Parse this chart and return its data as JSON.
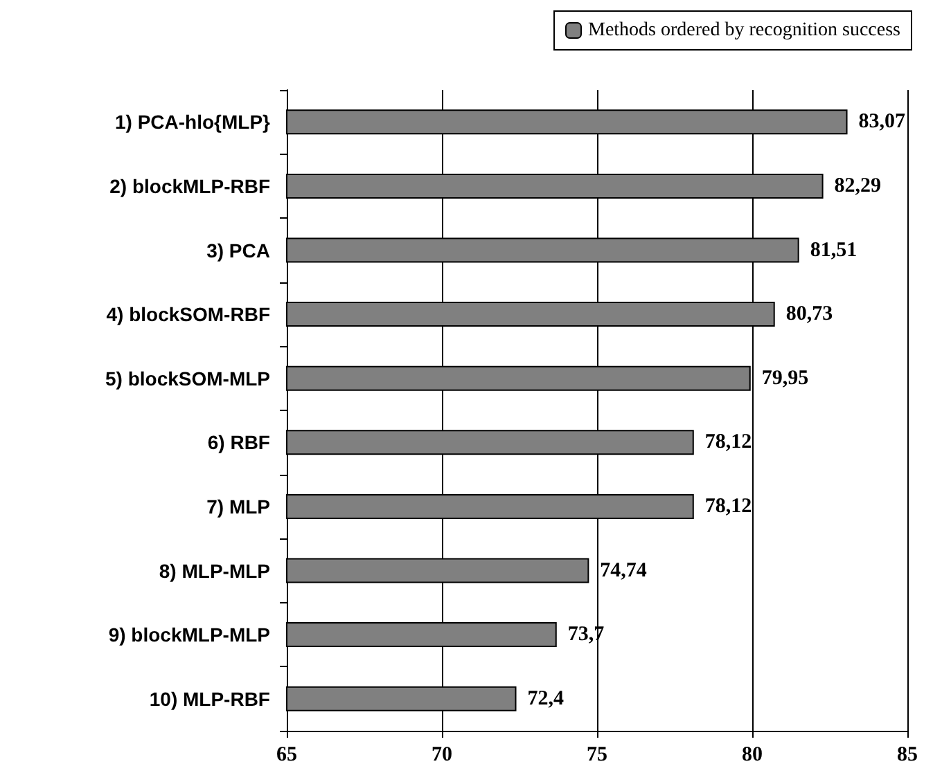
{
  "chart_data": {
    "type": "bar",
    "orientation": "horizontal",
    "categories": [
      "1) PCA-hlo{MLP}",
      "2) blockMLP-RBF",
      "3) PCA",
      "4) blockSOM-RBF",
      "5) blockSOM-MLP",
      "6) RBF",
      "7) MLP",
      "8) MLP-MLP",
      "9) blockMLP-MLP",
      "10) MLP-RBF"
    ],
    "series": [
      {
        "name": "Methods ordered by recognition success",
        "color": "#808080",
        "values": [
          83.07,
          82.29,
          81.51,
          80.73,
          79.95,
          78.12,
          78.12,
          74.74,
          73.7,
          72.4
        ],
        "value_labels": [
          "83,07",
          "82,29",
          "81,51",
          "80,73",
          "79,95",
          "78,12",
          "78,12",
          "74,74",
          "73,7",
          "72,4"
        ]
      }
    ],
    "xlim": [
      65,
      85
    ],
    "xticks": [
      65,
      70,
      75,
      80,
      85
    ],
    "grid": "x",
    "legend": "top"
  }
}
